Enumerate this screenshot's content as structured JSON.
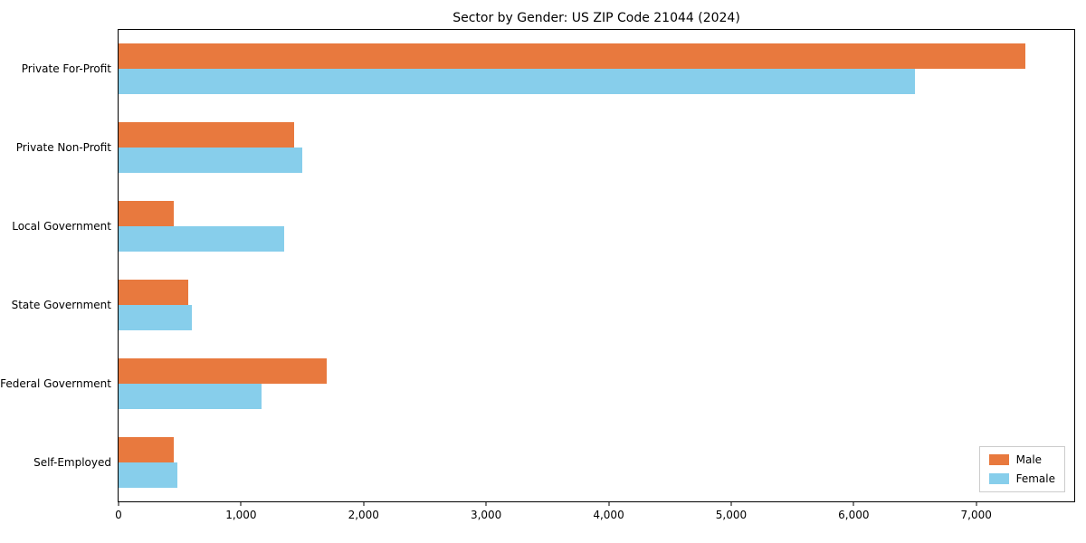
{
  "chart_data": {
    "type": "bar",
    "orientation": "horizontal",
    "title": "Sector by Gender: US ZIP Code 21044 (2024)",
    "xlabel": "",
    "ylabel": "",
    "categories": [
      "Private For-Profit",
      "Private Non-Profit",
      "Local Government",
      "State Government",
      "Federal Government",
      "Self-Employed"
    ],
    "series": [
      {
        "name": "Male",
        "color": "#e8793e",
        "values": [
          7400,
          1430,
          450,
          570,
          1700,
          450
        ]
      },
      {
        "name": "Female",
        "color": "#87ceeb",
        "values": [
          6500,
          1500,
          1350,
          600,
          1170,
          480
        ]
      }
    ],
    "xlim": [
      0,
      7800
    ],
    "x_ticks": [
      0,
      1000,
      2000,
      3000,
      4000,
      5000,
      6000,
      7000
    ],
    "x_tick_labels": [
      "0",
      "1,000",
      "2,000",
      "3,000",
      "4,000",
      "5,000",
      "6,000",
      "7,000"
    ],
    "grid": false,
    "legend_position": "lower right"
  }
}
